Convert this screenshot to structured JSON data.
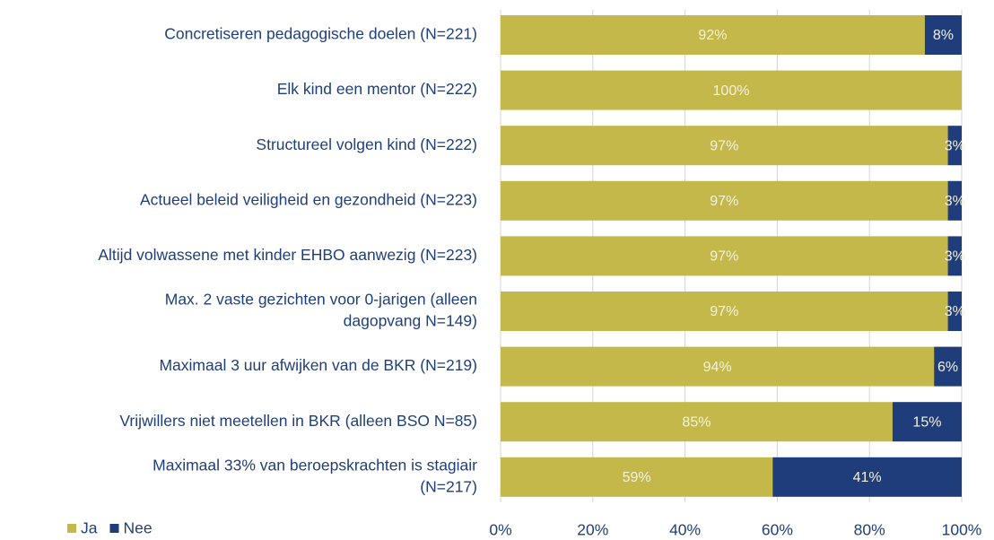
{
  "chart_data": {
    "type": "stacked-barh",
    "categories": [
      "Concretiseren pedagogische doelen (N=221)",
      "Elk kind een mentor (N=222)",
      "Structureel volgen kind (N=222)",
      "Actueel beleid veiligheid en gezondheid (N=223)",
      "Altijd volwassene met kinder EHBO aanwezig (N=223)",
      [
        "Max. 2 vaste gezichten voor 0-jarigen (alleen",
        "dagopvang N=149)"
      ],
      "Maximaal 3 uur afwijken van de BKR (N=219)",
      "Vrijwillers  niet meetellen in BKR (alleen BSO N=85)",
      [
        "Maximaal 33% van beroepskrachten is stagiair",
        "(N=217)"
      ]
    ],
    "series": [
      {
        "name": "Ja",
        "color": "#c4b84b",
        "values": [
          92,
          100,
          97,
          97,
          97,
          97,
          94,
          85,
          59
        ],
        "value_labels": [
          "92%",
          "100%",
          "97%",
          "97%",
          "97%",
          "97%",
          "94%",
          "85%",
          "59%"
        ]
      },
      {
        "name": "Nee",
        "color": "#1f3d7a",
        "values": [
          8,
          0,
          3,
          3,
          3,
          3,
          6,
          15,
          41
        ],
        "value_labels": [
          "8%",
          null,
          "3%",
          "3%",
          "3%",
          "3%",
          "6%",
          "15%",
          "41%"
        ]
      }
    ],
    "xlim": [
      0,
      100
    ],
    "xticks": [
      {
        "value": 0,
        "label": "0%"
      },
      {
        "value": 20,
        "label": "20%"
      },
      {
        "value": 40,
        "label": "40%"
      },
      {
        "value": 60,
        "label": "60%"
      },
      {
        "value": 80,
        "label": "80%"
      },
      {
        "value": 100,
        "label": "100%"
      }
    ],
    "grid": true,
    "legend": "bottom-left"
  }
}
